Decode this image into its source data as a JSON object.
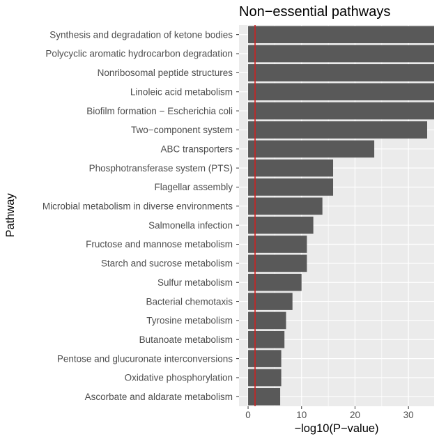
{
  "chart_data": {
    "type": "bar",
    "orientation": "horizontal",
    "title": "Non−essential pathways",
    "xlabel": "−log10(P−value)",
    "ylabel": "Pathway",
    "xlim": [
      -1.7,
      34.8
    ],
    "xticks": [
      0,
      10,
      20,
      30
    ],
    "reference_line": {
      "x": 1.3,
      "color": "#cc2222"
    },
    "grid": true,
    "colors": {
      "bar": "#595959",
      "panel": "#ebebeb",
      "gridline": "#ffffff",
      "reference_line": "#cc2222"
    },
    "categories": [
      "Synthesis and degradation of ketone bodies",
      "Polycyclic aromatic hydrocarbon degradation",
      "Nonribosomal peptide structures",
      "Linoleic acid metabolism",
      "Biofilm formation − Escherichia coli",
      "Two−component system",
      "ABC transporters",
      "Phosphotransferase system (PTS)",
      "Flagellar assembly",
      "Microbial metabolism in diverse environments",
      "Salmonella infection",
      "Fructose and mannose metabolism",
      "Starch and sucrose metabolism",
      "Sulfur metabolism",
      "Bacterial chemotaxis",
      "Tyrosine metabolism",
      "Butanoate metabolism",
      "Pentose and glucuronate interconversions",
      "Oxidative phosphorylation",
      "Ascorbate and aldarate metabolism"
    ],
    "values": [
      35,
      35,
      35,
      35,
      35,
      33.5,
      23.6,
      15.9,
      15.9,
      13.9,
      12.2,
      11.0,
      11.0,
      10.0,
      8.3,
      7.1,
      6.8,
      6.2,
      6.2,
      6.0
    ]
  }
}
